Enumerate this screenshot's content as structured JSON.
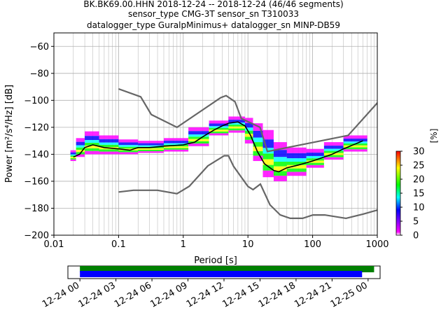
{
  "header": {
    "line1": "BK.BK69.00.HHN   2018-12-24 -- 2018-12-24  (46/46 segments)",
    "line2": "sensor_type CMG-3T sensor_sn T310033",
    "line3": "datalogger_type GuralpMinimus+ datalogger_sn MINP-DB59"
  },
  "chart_data": [
    {
      "type": "heatmap",
      "title": "",
      "xlabel": "Period [s]",
      "ylabel": "Power [m²/s⁴/Hz] [dB]",
      "xscale": "log",
      "xlim": [
        0.01,
        1000
      ],
      "ylim": [
        -200,
        -50
      ],
      "x_ticks": [
        0.01,
        0.1,
        1,
        10,
        100,
        1000
      ],
      "x_tick_labels": [
        "0.01",
        "0.1",
        "1",
        "10",
        "100",
        "1000"
      ],
      "y_ticks": [
        -200,
        -180,
        -160,
        -140,
        -120,
        -100,
        -80,
        -60
      ],
      "y_tick_labels": [
        "−200",
        "−180",
        "−160",
        "−140",
        "−120",
        "−100",
        "−80",
        "−60"
      ],
      "grid": true,
      "colorbar": {
        "label": "[%]",
        "range": [
          0,
          30
        ],
        "ticks": [
          0,
          5,
          10,
          15,
          20,
          25,
          30
        ],
        "tick_labels": [
          "0",
          "5",
          "10",
          "15",
          "20",
          "25",
          "30"
        ],
        "colormap": [
          "#ffffff",
          "#ff00ff",
          "#0000ff",
          "#00ffff",
          "#00ff00",
          "#ffff00",
          "#ff0000"
        ]
      },
      "series": [
        {
          "name": "",
          "kind": "high-noise-model",
          "color": "#666666",
          "x": [
            0.1,
            0.22,
            0.32,
            0.8,
            3.8,
            4.6,
            6.3,
            7.9,
            15.4,
            20,
            354.8,
            10000
          ],
          "y": [
            -91.5,
            -97.4,
            -110.5,
            -120,
            -98,
            -96.5,
            -101,
            -113.5,
            -120,
            -138,
            -126,
            -48.5
          ]
        },
        {
          "name": "",
          "kind": "low-noise-model",
          "color": "#666666",
          "x": [
            0.1,
            0.17,
            0.4,
            0.8,
            1.24,
            2.4,
            4.3,
            5,
            6,
            10,
            12,
            15.6,
            21.9,
            31.6,
            45,
            70,
            101,
            154,
            328,
            600,
            10000
          ],
          "y": [
            -168,
            -166.7,
            -166.7,
            -169.2,
            -163.7,
            -148.6,
            -141.1,
            -141.1,
            -149,
            -163.8,
            -166.2,
            -162.1,
            -177.5,
            -185,
            -187.5,
            -187.5,
            -185,
            -185,
            -187.5,
            -184.4,
            -168
          ]
        },
        {
          "name": "",
          "kind": "mode",
          "color": "#000000",
          "x": [
            0.02,
            0.025,
            0.03,
            0.04,
            0.06,
            0.1,
            0.15,
            0.2,
            0.3,
            0.5,
            1,
            1.5,
            2,
            3,
            4,
            5,
            7,
            9,
            11,
            14,
            18,
            25,
            30,
            40,
            60,
            100,
            200,
            300,
            600
          ],
          "y": [
            -142,
            -140,
            -135,
            -133,
            -135,
            -136,
            -137,
            -135,
            -135,
            -134,
            -133,
            -131,
            -127,
            -122,
            -119,
            -117,
            -116,
            -119,
            -126,
            -138,
            -147,
            -152,
            -153,
            -150,
            -148,
            -145,
            -140,
            -136,
            -130
          ]
        }
      ],
      "density": [
        {
          "x": [
            0.018,
            0.022
          ],
          "y": [
            -145,
            -137
          ]
        },
        {
          "x": [
            0.022,
            0.03
          ],
          "y": [
            -142,
            -128
          ]
        },
        {
          "x": [
            0.03,
            0.05
          ],
          "y": [
            -140,
            -123
          ]
        },
        {
          "x": [
            0.05,
            0.1
          ],
          "y": [
            -140,
            -126
          ]
        },
        {
          "x": [
            0.1,
            0.2
          ],
          "y": [
            -140,
            -129
          ]
        },
        {
          "x": [
            0.2,
            0.5
          ],
          "y": [
            -139,
            -130
          ]
        },
        {
          "x": [
            0.5,
            1.2
          ],
          "y": [
            -138,
            -128
          ]
        },
        {
          "x": [
            1.2,
            2.5
          ],
          "y": [
            -134,
            -120
          ]
        },
        {
          "x": [
            2.5,
            5
          ],
          "y": [
            -126,
            -115
          ]
        },
        {
          "x": [
            5,
            9
          ],
          "y": [
            -124,
            -112
          ]
        },
        {
          "x": [
            9,
            12
          ],
          "y": [
            -132,
            -113
          ]
        },
        {
          "x": [
            12,
            17
          ],
          "y": [
            -145,
            -117
          ]
        },
        {
          "x": [
            17,
            25
          ],
          "y": [
            -157,
            -122
          ]
        },
        {
          "x": [
            25,
            40
          ],
          "y": [
            -160,
            -131
          ]
        },
        {
          "x": [
            40,
            80
          ],
          "y": [
            -156,
            -135
          ]
        },
        {
          "x": [
            80,
            150
          ],
          "y": [
            -150,
            -136
          ]
        },
        {
          "x": [
            150,
            300
          ],
          "y": [
            -144,
            -131
          ]
        },
        {
          "x": [
            300,
            700
          ],
          "y": [
            -138,
            -126
          ]
        }
      ]
    },
    {
      "type": "timeline",
      "x_tick_labels": [
        "12-24 00",
        "12-24 03",
        "12-24 06",
        "12-24 09",
        "12-24 12",
        "12-24 15",
        "12-24 18",
        "12-24 21",
        "12-25 00"
      ],
      "x_range_hours": [
        -1,
        25
      ],
      "bars": [
        {
          "start_hour": 0,
          "end_hour": 24.5,
          "color": "#008000"
        },
        {
          "start_hour": 0,
          "end_hour": 23.5,
          "color": "#0000ff"
        }
      ]
    }
  ]
}
